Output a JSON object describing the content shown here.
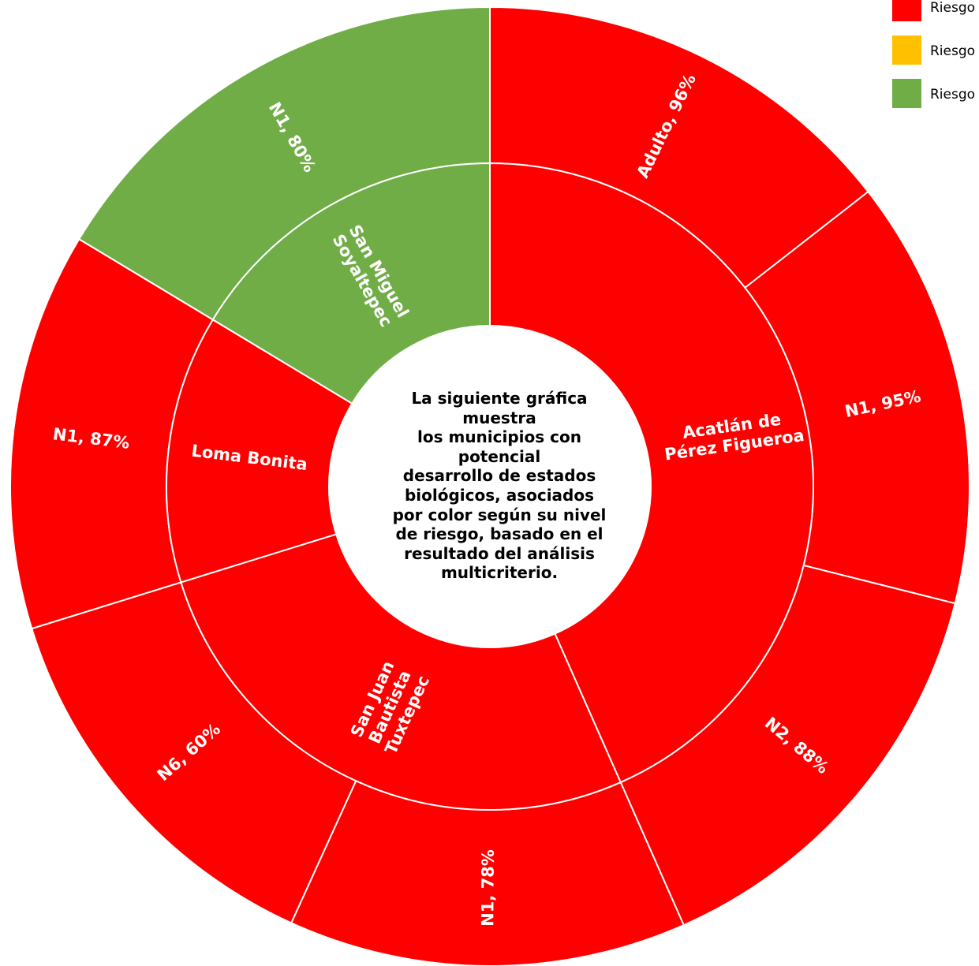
{
  "colors": {
    "high": "#ff0000",
    "medium": "#ffc000",
    "low": "#70ad47",
    "border": "#ffffff",
    "center": "#ffffff"
  },
  "legend": [
    {
      "label": "Riesgo",
      "color": "#ff0000"
    },
    {
      "label": "Riesgo",
      "color": "#ffc000"
    },
    {
      "label": "Riesgo",
      "color": "#70ad47"
    }
  ],
  "center_text": [
    "La siguiente gráfica",
    "muestra",
    "los municipios con",
    "potencial",
    "desarrollo de estados",
    "biológicos,  asociados",
    "por color según su nivel",
    "de riesgo, basado en el",
    "resultado del análisis",
    "multicriterio."
  ],
  "chart_data": {
    "type": "sunburst",
    "title": "",
    "municipios": [
      {
        "name": "Acatlán de Pérez Figueroa",
        "label_lines": [
          "Acatlán de",
          "Pérez Figueroa"
        ],
        "risk": "high",
        "children": [
          {
            "label": "Adulto, 96%",
            "stage": "Adulto",
            "percent": 96,
            "risk": "high"
          },
          {
            "label": "N1, 95%",
            "stage": "N1",
            "percent": 95,
            "risk": "high"
          },
          {
            "label": "N2, 88%",
            "stage": "N2",
            "percent": 88,
            "risk": "high"
          }
        ]
      },
      {
        "name": "San Juan Bautista Tuxtepec",
        "label_lines": [
          "San Juan",
          "Bautista",
          "Tuxtepec"
        ],
        "risk": "high",
        "children": [
          {
            "label": "N1, 78%",
            "stage": "N1",
            "percent": 78,
            "risk": "high"
          },
          {
            "label": "N6, 60%",
            "stage": "N6",
            "percent": 60,
            "risk": "high"
          }
        ]
      },
      {
        "name": "Loma Bonita",
        "label_lines": [
          "Loma Bonita"
        ],
        "risk": "high",
        "children": [
          {
            "label": "N1, 87%",
            "stage": "N1",
            "percent": 87,
            "risk": "high"
          }
        ]
      },
      {
        "name": "San Miguel Soyaltepec",
        "label_lines": [
          "San Miguel",
          "Soyaltepec"
        ],
        "risk": "low",
        "children": [
          {
            "label": "N1, 80%",
            "stage": "N1",
            "percent": 80,
            "risk": "low"
          }
        ]
      }
    ]
  }
}
